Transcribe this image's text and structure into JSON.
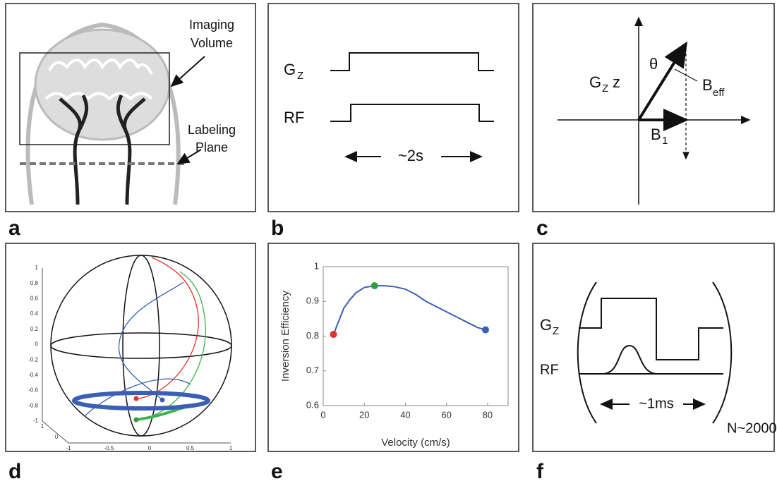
{
  "panels": {
    "a": {
      "letter": "a",
      "imaging": [
        "Imaging",
        "Volume"
      ],
      "labeling": [
        "Labeling",
        "Plane"
      ]
    },
    "b": {
      "letter": "b",
      "gz": "G",
      "gz_sub": "Z",
      "rf": "RF",
      "duration": "~2s"
    },
    "c": {
      "letter": "c",
      "gz": "G",
      "gz_sub": "Z",
      "gz_var": "z",
      "theta": "θ",
      "beff": "B",
      "beff_sub": "eff",
      "b1": "B",
      "b1_sub": "1"
    },
    "d": {
      "letter": "d",
      "zticks": [
        1,
        0.8,
        0.6,
        0.4,
        0.2,
        0,
        -0.2,
        -0.4,
        -0.6,
        -0.8,
        -1
      ],
      "xticks": [
        -1,
        -0.5,
        0,
        0.5,
        1
      ],
      "depthticks": [
        1,
        0
      ]
    },
    "e": {
      "letter": "e"
    },
    "f": {
      "letter": "f",
      "gz": "G",
      "gz_sub": "Z",
      "rf": "RF",
      "duration": "~1ms",
      "repeat": "N~2000"
    }
  },
  "chart_data": {
    "type": "line",
    "xlabel": "Velocity (cm/s)",
    "ylabel": "Inversion Efficiency",
    "xlim": [
      0,
      90
    ],
    "ylim": [
      0.6,
      1
    ],
    "xticks": [
      0,
      20,
      40,
      60,
      80
    ],
    "yticks": [
      0.6,
      0.7,
      0.8,
      0.9,
      1
    ],
    "color": "#3a5fb5",
    "x": [
      5,
      8,
      10,
      13,
      16,
      20,
      25,
      30,
      35,
      40,
      45,
      50,
      55,
      60,
      65,
      70,
      75,
      79
    ],
    "values": [
      0.805,
      0.85,
      0.88,
      0.905,
      0.925,
      0.94,
      0.945,
      0.945,
      0.942,
      0.935,
      0.92,
      0.9,
      0.885,
      0.87,
      0.855,
      0.84,
      0.825,
      0.818
    ],
    "points": {
      "x": [
        5,
        25,
        79
      ],
      "values": [
        0.805,
        0.945,
        0.818
      ],
      "colors": [
        "#e53030",
        "#2e9e3e",
        "#3a5fb5"
      ]
    }
  }
}
